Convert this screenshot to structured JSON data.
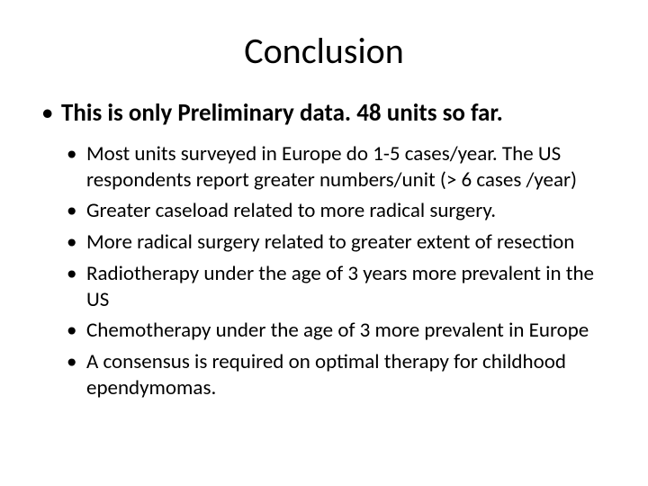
{
  "slide": {
    "title": "Conclusion",
    "title_fontsize": 40,
    "background_color": "#ffffff",
    "text_color": "#000000",
    "font_family": "Calibri",
    "main_bullet": "This is only Preliminary data. 48 units so far.",
    "main_bullet_fontsize": 27,
    "main_bullet_weight": "bold",
    "sub_bullets": [
      "Most units surveyed in Europe do 1-5 cases/year. The US respondents report greater numbers/unit (> 6 cases /year)",
      "Greater caseload related to more radical surgery.",
      "More radical surgery related to greater extent of resection",
      "Radiotherapy under the age of 3 years more prevalent in the US",
      "Chemotherapy under the age of 3 more prevalent in Europe",
      "A consensus is required on optimal therapy for childhood ependymomas."
    ],
    "sub_bullet_fontsize": 23,
    "sub_bullet_weight": "normal"
  }
}
